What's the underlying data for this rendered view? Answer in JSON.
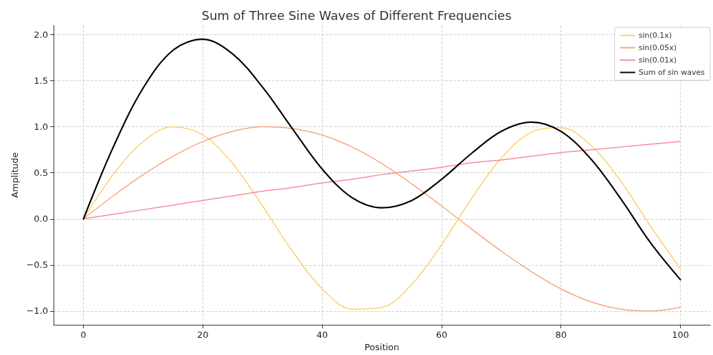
{
  "chart_data": {
    "type": "line",
    "title": "Sum of Three Sine Waves of Different Frequencies",
    "xlabel": "Position",
    "ylabel": "Amplitude",
    "x": [
      0,
      5,
      10,
      15,
      20,
      25,
      30,
      35,
      40,
      45,
      50,
      55,
      60,
      65,
      70,
      75,
      80,
      85,
      90,
      95,
      100
    ],
    "series": [
      {
        "name": "sin(0.1x)",
        "color": "#fdd06c",
        "values": [
          0,
          0.48,
          0.84,
          1.0,
          0.91,
          0.6,
          0.14,
          -0.35,
          -0.76,
          -0.98,
          -0.96,
          -0.71,
          -0.28,
          0.22,
          0.66,
          0.94,
          0.99,
          0.8,
          0.41,
          -0.08,
          -0.54
        ]
      },
      {
        "name": "sin(0.05x)",
        "color": "#f6a47c",
        "values": [
          0,
          0.25,
          0.48,
          0.68,
          0.84,
          0.95,
          1.0,
          0.98,
          0.91,
          0.78,
          0.6,
          0.38,
          0.14,
          -0.11,
          -0.35,
          -0.57,
          -0.76,
          -0.9,
          -0.98,
          -1.0,
          -0.96
        ]
      },
      {
        "name": "sin(0.01x)",
        "color": "#f78a9e",
        "values": [
          0,
          0.05,
          0.1,
          0.15,
          0.2,
          0.25,
          0.3,
          0.34,
          0.39,
          0.43,
          0.48,
          0.52,
          0.56,
          0.61,
          0.64,
          0.68,
          0.72,
          0.75,
          0.78,
          0.81,
          0.84
        ]
      },
      {
        "name": "Sum of sin waves",
        "color": "#000000",
        "values": [
          0,
          0.78,
          1.42,
          1.83,
          1.95,
          1.79,
          1.43,
          0.98,
          0.54,
          0.23,
          0.12,
          0.2,
          0.43,
          0.71,
          0.95,
          1.05,
          0.95,
          0.65,
          0.22,
          -0.26,
          -0.66
        ]
      }
    ],
    "xlim": [
      -5,
      105
    ],
    "xticks": [
      0,
      20,
      40,
      60,
      80,
      100
    ],
    "ylim": [
      -1.15,
      2.1
    ],
    "yticks": [
      {
        "value": -1,
        "label": "−1.0"
      },
      {
        "value": -0.5,
        "label": "−0.5"
      },
      {
        "value": 0,
        "label": "0.0"
      },
      {
        "value": 0.5,
        "label": "0.5"
      },
      {
        "value": 1,
        "label": "1.0"
      },
      {
        "value": 1.5,
        "label": "1.5"
      },
      {
        "value": 2,
        "label": "2.0"
      }
    ],
    "grid": true,
    "legend": "top right",
    "marker": "none",
    "line_style": "solid"
  }
}
